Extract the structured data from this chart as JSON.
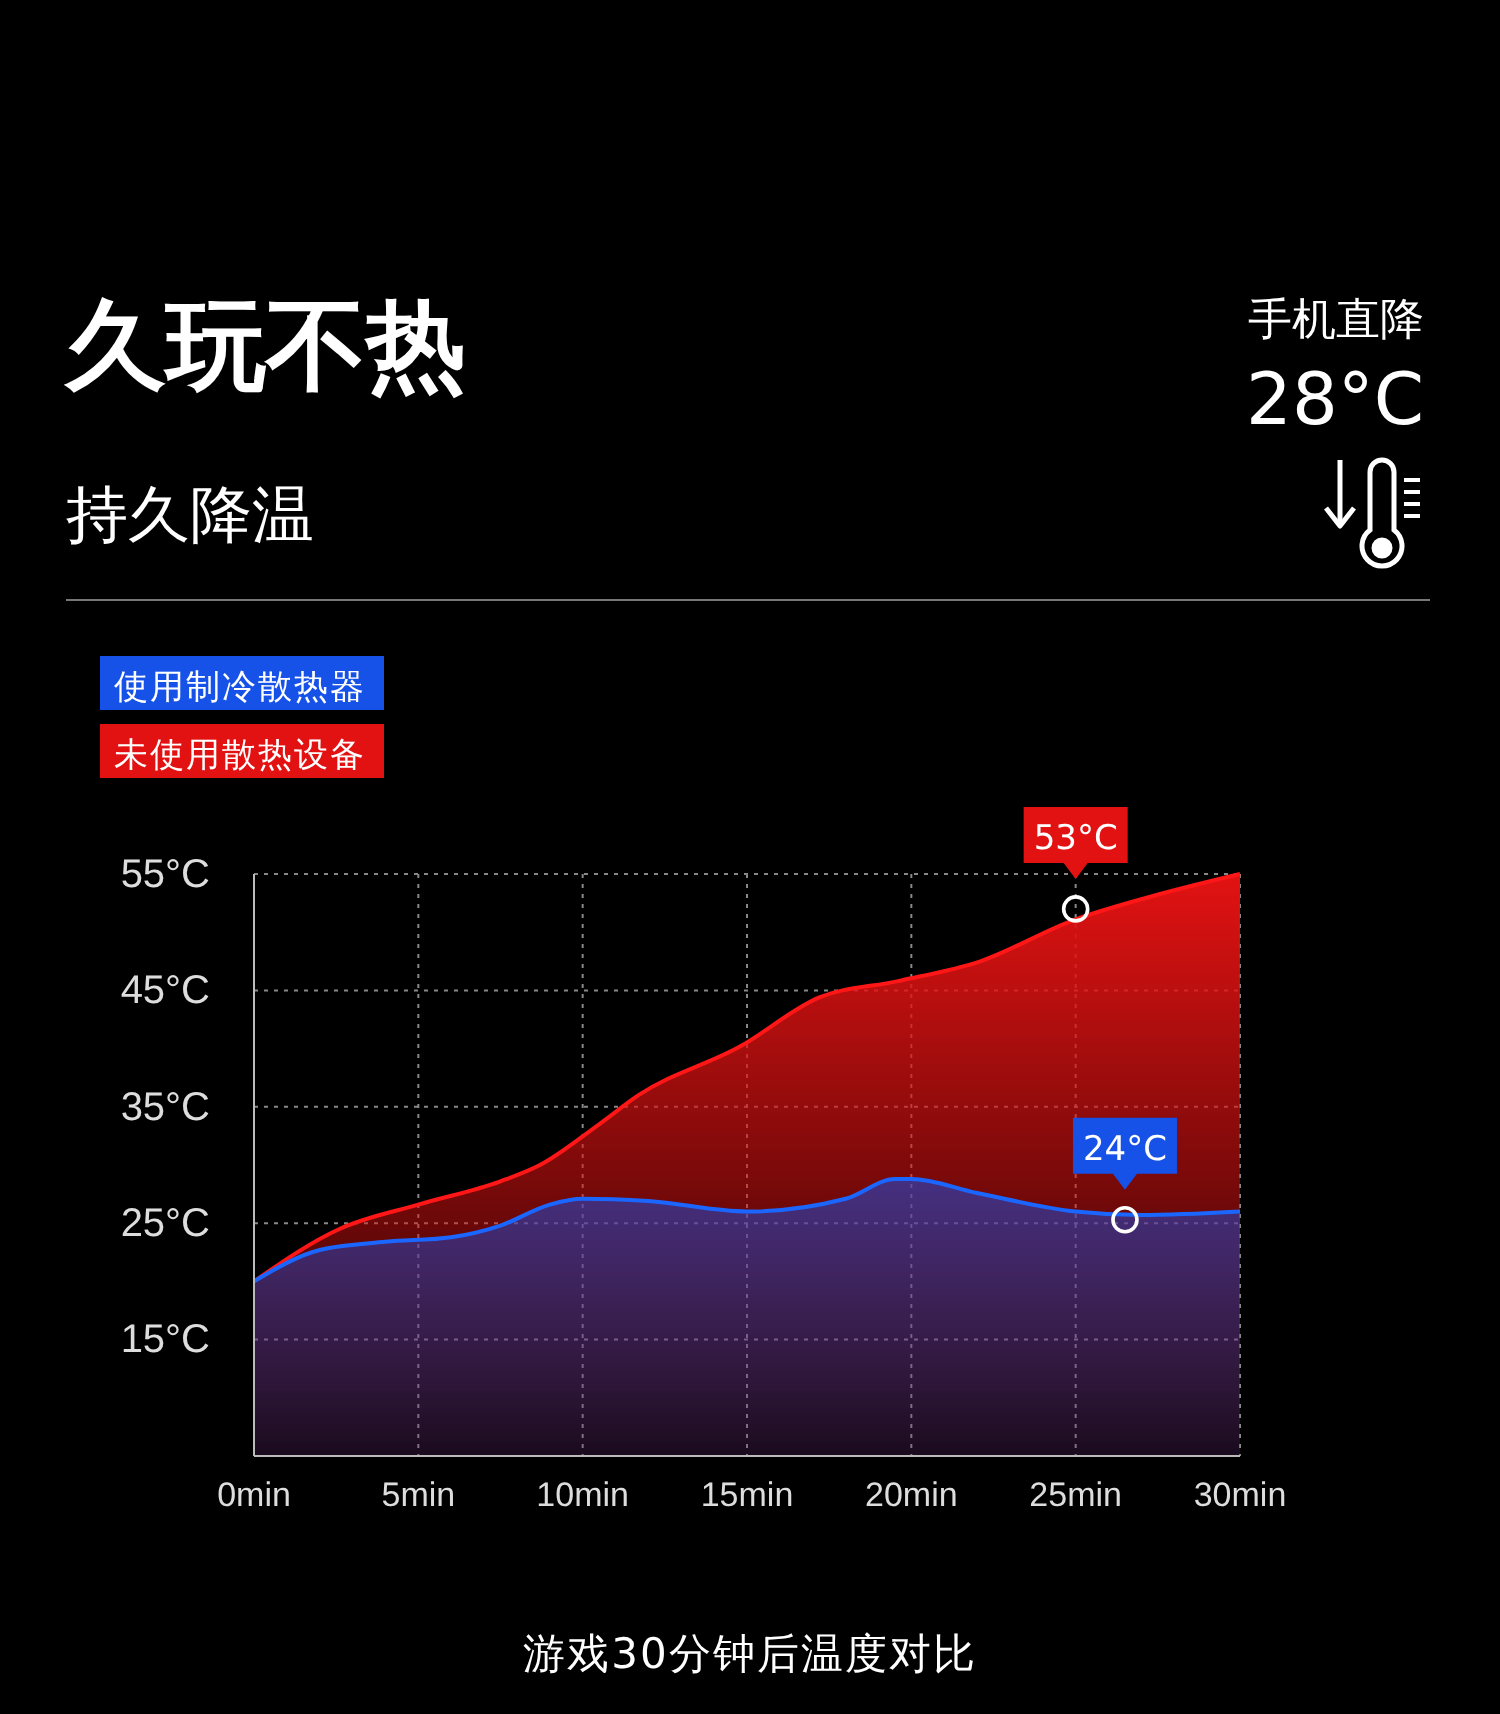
{
  "chart_data": {
    "type": "area",
    "title": "久玩不热",
    "subtitle": "持久降温",
    "x": [
      0,
      2.6,
      5,
      7.5,
      8.7,
      10.5,
      11.7,
      14.8,
      17.2,
      19.6,
      22.1,
      24.9,
      27.6,
      30
    ],
    "series": [
      {
        "name": "未使用散热设备",
        "color": "#e31212",
        "values": [
          20,
          24.5,
          26.6,
          28.6,
          30,
          33.5,
          36,
          40.2,
          44.4,
          45.8,
          47.5,
          51,
          53.3,
          55
        ]
      },
      {
        "name": "使用制冷散热器",
        "color": "#1652e8",
        "x": [
          0,
          2,
          4,
          6,
          7.5,
          9,
          10,
          12,
          15,
          18,
          19.5,
          20,
          22,
          25,
          27,
          30
        ],
        "values": [
          20,
          22.7,
          23.4,
          23.8,
          24.8,
          26.6,
          27.1,
          26.9,
          26,
          27.1,
          28.8,
          28.8,
          27.6,
          26,
          25.7,
          26
        ]
      }
    ],
    "xlim": [
      0,
      30
    ],
    "xticks": [
      {
        "value": 0,
        "label": "0min"
      },
      {
        "value": 5,
        "label": "5min"
      },
      {
        "value": 10,
        "label": "10min"
      },
      {
        "value": 15,
        "label": "15min"
      },
      {
        "value": 20,
        "label": "20min"
      },
      {
        "value": 25,
        "label": "25min"
      },
      {
        "value": 30,
        "label": "30min"
      }
    ],
    "ylim": [
      5,
      55
    ],
    "yticks": [
      {
        "value": 15,
        "label": "15°C"
      },
      {
        "value": 25,
        "label": "25°C"
      },
      {
        "value": 35,
        "label": "35°C"
      },
      {
        "value": 45,
        "label": "45°C"
      },
      {
        "value": 55,
        "label": "55°C"
      }
    ],
    "grid": true,
    "legend": "top left",
    "annotations": [
      {
        "text": "53°C",
        "x": 25,
        "y": 52
      },
      {
        "text": "24°C",
        "x": 26.5,
        "y": 25.3
      },
      "手机直降",
      "28°C",
      "游戏30分钟后温度对比"
    ]
  }
}
